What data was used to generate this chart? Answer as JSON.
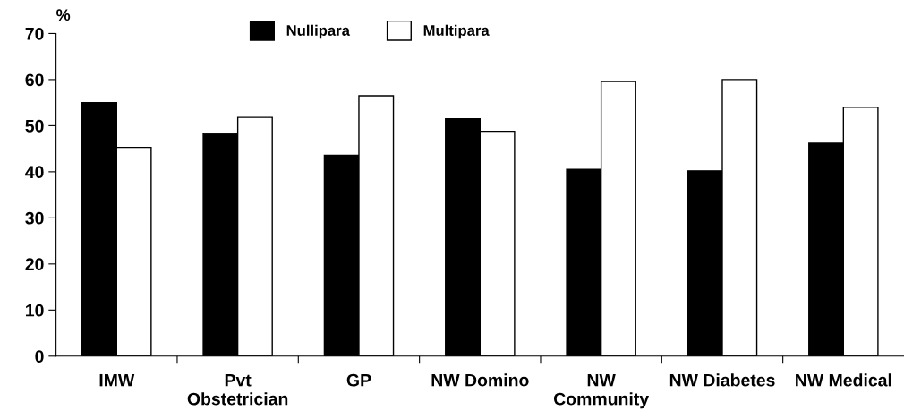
{
  "chart_data": {
    "type": "bar",
    "ylabel": "%",
    "categories": [
      "IMW",
      "Pvt\nObstetrician",
      "GP",
      "NW Domino",
      "NW\nCommunity",
      "NW Diabetes",
      "NW Medical"
    ],
    "series": [
      {
        "name": "Nullipara",
        "color": "#000000",
        "values": [
          55.0,
          48.3,
          43.6,
          51.5,
          40.5,
          40.2,
          46.2
        ]
      },
      {
        "name": "Multipara",
        "color": "#ffffff",
        "values": [
          45.3,
          51.8,
          56.5,
          48.8,
          59.6,
          60.0,
          54.0
        ]
      }
    ],
    "ylim": [
      0,
      70
    ],
    "yticks": [
      0,
      10,
      20,
      30,
      40,
      50,
      60,
      70
    ],
    "grid": false,
    "legend": "top"
  }
}
